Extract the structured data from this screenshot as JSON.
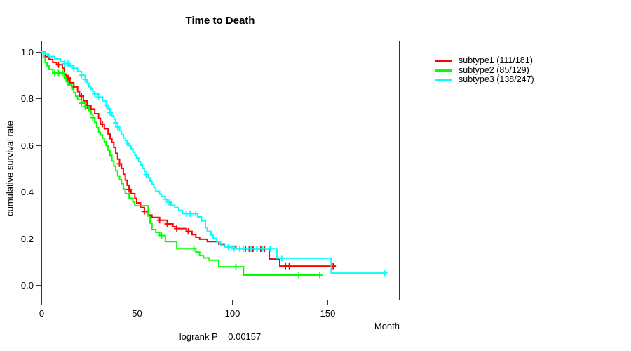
{
  "chart_data": {
    "type": "line",
    "style": "kaplan-meier-step",
    "title": "Time to Death",
    "xlabel": "Month",
    "ylabel": "cumulative survival rate",
    "annotation": "logrank P = 0.00157",
    "xlim": [
      0,
      187
    ],
    "ylim": [
      0,
      1
    ],
    "x_ticks": [
      0,
      50,
      100,
      150
    ],
    "y_ticks": [
      0.0,
      0.2,
      0.4,
      0.6,
      0.8,
      1.0
    ],
    "grid": false,
    "legend_position": "right-outside-top",
    "series": [
      {
        "name": "subtype1",
        "label": "subtype1 (111/181)",
        "events": 111,
        "n": 181,
        "color": "#ff0000",
        "end_month": 153.5,
        "steps": [
          [
            0,
            1.0
          ],
          [
            2,
            0.98
          ],
          [
            4,
            0.968
          ],
          [
            6,
            0.955
          ],
          [
            8,
            0.945
          ],
          [
            11,
            0.93
          ],
          [
            12,
            0.905
          ],
          [
            13,
            0.888
          ],
          [
            15,
            0.868
          ],
          [
            17,
            0.85
          ],
          [
            19,
            0.83
          ],
          [
            20,
            0.81
          ],
          [
            22,
            0.79
          ],
          [
            24,
            0.77
          ],
          [
            26,
            0.755
          ],
          [
            28,
            0.735
          ],
          [
            30,
            0.715
          ],
          [
            31,
            0.69
          ],
          [
            33,
            0.67
          ],
          [
            35,
            0.648
          ],
          [
            36,
            0.628
          ],
          [
            37,
            0.612
          ],
          [
            38,
            0.59
          ],
          [
            39,
            0.565
          ],
          [
            40,
            0.54
          ],
          [
            41,
            0.52
          ],
          [
            42,
            0.5
          ],
          [
            43,
            0.475
          ],
          [
            44,
            0.45
          ],
          [
            45,
            0.428
          ],
          [
            46,
            0.41
          ],
          [
            47,
            0.392
          ],
          [
            49,
            0.372
          ],
          [
            50,
            0.352
          ],
          [
            52,
            0.332
          ],
          [
            54,
            0.315
          ],
          [
            56,
            0.3
          ],
          [
            58,
            0.29
          ],
          [
            62,
            0.278
          ],
          [
            66,
            0.262
          ],
          [
            69,
            0.25
          ],
          [
            71,
            0.242
          ],
          [
            76,
            0.23
          ],
          [
            79,
            0.216
          ],
          [
            81,
            0.205
          ],
          [
            83,
            0.196
          ],
          [
            87,
            0.186
          ],
          [
            93,
            0.176
          ],
          [
            96,
            0.166
          ],
          [
            102,
            0.155
          ],
          [
            119.5,
            0.111
          ],
          [
            125,
            0.081
          ]
        ],
        "censor_months": [
          9,
          14,
          17,
          21,
          24,
          32,
          41,
          46,
          54,
          62,
          66,
          71,
          77,
          107,
          109,
          111,
          113,
          115,
          117,
          128,
          130,
          153
        ]
      },
      {
        "name": "subtype2",
        "label": "subtype2 (85/129)",
        "events": 85,
        "n": 129,
        "color": "#00ff00",
        "end_month": 146,
        "steps": [
          [
            0,
            1.0
          ],
          [
            1,
            0.975
          ],
          [
            2,
            0.955
          ],
          [
            3,
            0.94
          ],
          [
            4,
            0.925
          ],
          [
            6,
            0.91
          ],
          [
            12,
            0.888
          ],
          [
            13,
            0.872
          ],
          [
            14,
            0.858
          ],
          [
            16,
            0.84
          ],
          [
            17,
            0.825
          ],
          [
            18,
            0.81
          ],
          [
            19,
            0.795
          ],
          [
            21,
            0.78
          ],
          [
            23,
            0.765
          ],
          [
            25,
            0.748
          ],
          [
            26,
            0.733
          ],
          [
            27,
            0.718
          ],
          [
            28,
            0.698
          ],
          [
            29,
            0.675
          ],
          [
            30,
            0.655
          ],
          [
            31,
            0.643
          ],
          [
            32,
            0.63
          ],
          [
            33,
            0.615
          ],
          [
            34,
            0.598
          ],
          [
            35,
            0.578
          ],
          [
            36,
            0.556
          ],
          [
            37,
            0.532
          ],
          [
            38,
            0.51
          ],
          [
            39,
            0.49
          ],
          [
            40,
            0.468
          ],
          [
            41,
            0.452
          ],
          [
            42,
            0.435
          ],
          [
            43,
            0.412
          ],
          [
            44,
            0.392
          ],
          [
            46,
            0.372
          ],
          [
            48,
            0.356
          ],
          [
            49,
            0.34
          ],
          [
            56,
            0.296
          ],
          [
            57,
            0.266
          ],
          [
            58,
            0.238
          ],
          [
            60,
            0.226
          ],
          [
            62,
            0.212
          ],
          [
            65,
            0.186
          ],
          [
            71,
            0.156
          ],
          [
            81,
            0.141
          ],
          [
            83,
            0.126
          ],
          [
            85,
            0.116
          ],
          [
            88,
            0.106
          ],
          [
            93,
            0.078
          ],
          [
            106,
            0.042
          ]
        ],
        "censor_months": [
          7,
          9,
          11,
          21,
          23,
          27,
          63,
          80,
          102,
          135,
          146
        ]
      },
      {
        "name": "subtype3",
        "label": "subtype3 (138/247)",
        "events": 138,
        "n": 247,
        "color": "#00ffff",
        "end_month": 180,
        "steps": [
          [
            0,
            1.0
          ],
          [
            2,
            0.99
          ],
          [
            4,
            0.98
          ],
          [
            7,
            0.97
          ],
          [
            10,
            0.958
          ],
          [
            12,
            0.95
          ],
          [
            15,
            0.94
          ],
          [
            17,
            0.93
          ],
          [
            19,
            0.916
          ],
          [
            21,
            0.9
          ],
          [
            23,
            0.882
          ],
          [
            24,
            0.866
          ],
          [
            25,
            0.85
          ],
          [
            26,
            0.84
          ],
          [
            27,
            0.83
          ],
          [
            28,
            0.82
          ],
          [
            30,
            0.806
          ],
          [
            32,
            0.79
          ],
          [
            34,
            0.772
          ],
          [
            35,
            0.756
          ],
          [
            36,
            0.74
          ],
          [
            37,
            0.726
          ],
          [
            38,
            0.712
          ],
          [
            39,
            0.696
          ],
          [
            40,
            0.678
          ],
          [
            41,
            0.662
          ],
          [
            42,
            0.645
          ],
          [
            43,
            0.63
          ],
          [
            44,
            0.62
          ],
          [
            45,
            0.61
          ],
          [
            46,
            0.598
          ],
          [
            47,
            0.585
          ],
          [
            48,
            0.57
          ],
          [
            49,
            0.556
          ],
          [
            50,
            0.545
          ],
          [
            51,
            0.53
          ],
          [
            52,
            0.515
          ],
          [
            53,
            0.5
          ],
          [
            54,
            0.487
          ],
          [
            55,
            0.474
          ],
          [
            56,
            0.46
          ],
          [
            57,
            0.446
          ],
          [
            58,
            0.432
          ],
          [
            59,
            0.418
          ],
          [
            60,
            0.402
          ],
          [
            62,
            0.39
          ],
          [
            63,
            0.38
          ],
          [
            65,
            0.368
          ],
          [
            66,
            0.355
          ],
          [
            68,
            0.342
          ],
          [
            70,
            0.332
          ],
          [
            72,
            0.32
          ],
          [
            74,
            0.306
          ],
          [
            82,
            0.292
          ],
          [
            84,
            0.275
          ],
          [
            86,
            0.246
          ],
          [
            87,
            0.23
          ],
          [
            89,
            0.214
          ],
          [
            90,
            0.2
          ],
          [
            92,
            0.185
          ],
          [
            94,
            0.17
          ],
          [
            96,
            0.163
          ],
          [
            100,
            0.156
          ],
          [
            123.5,
            0.115
          ],
          [
            152,
            0.051
          ]
        ],
        "censor_months": [
          12,
          14,
          17,
          21,
          23,
          28,
          30,
          34,
          36,
          39,
          40,
          45,
          55,
          65,
          67,
          76,
          78,
          81,
          98,
          101,
          104,
          106,
          110,
          113,
          116,
          120,
          126,
          180
        ]
      }
    ]
  }
}
